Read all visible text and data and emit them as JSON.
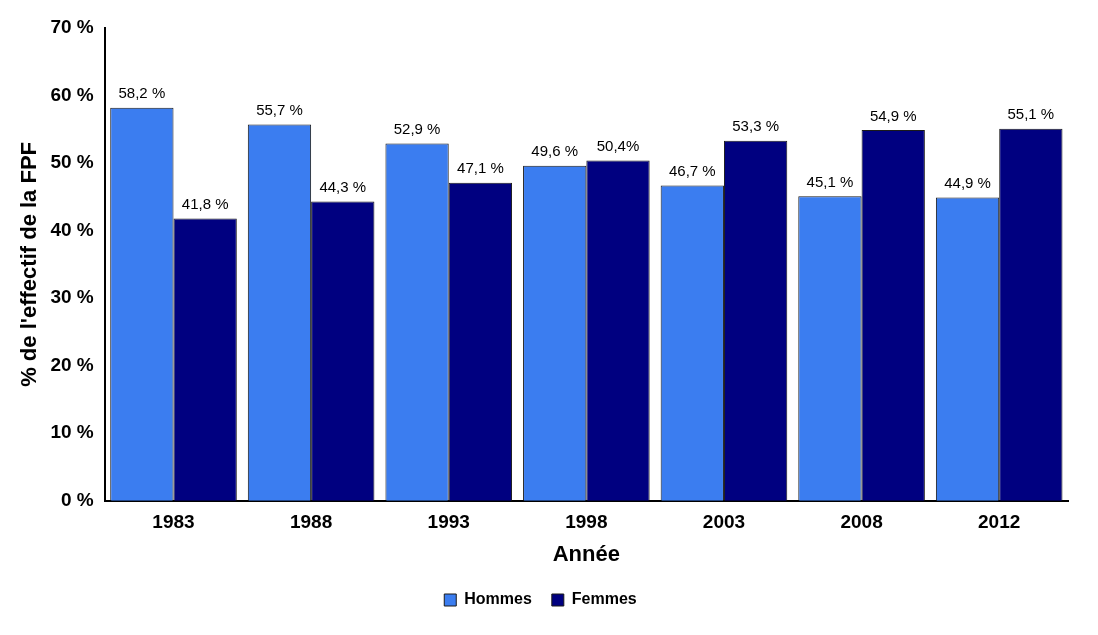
{
  "chart_data": {
    "type": "bar",
    "xlabel": "Année",
    "ylabel": "% de l'effectif de la FPF",
    "categories": [
      "1983",
      "1988",
      "1993",
      "1998",
      "2003",
      "2008",
      "2012"
    ],
    "series": [
      {
        "name": "Hommes",
        "color": "#3b7df0",
        "values": [
          58.2,
          55.7,
          52.9,
          49.6,
          46.7,
          45.1,
          44.9
        ],
        "value_labels": [
          "58,2 %",
          "55,7 %",
          "52,9 %",
          "49,6 %",
          "46,7 %",
          "45,1 %",
          "44,9 %"
        ]
      },
      {
        "name": "Femmes",
        "color": "#000080",
        "values": [
          41.8,
          44.3,
          47.1,
          50.4,
          53.3,
          54.9,
          55.1
        ],
        "value_labels": [
          "41,8 %",
          "44,3 %",
          "47,1 %",
          "50,4%",
          "53,3 %",
          "54,9 %",
          "55,1 %"
        ]
      }
    ],
    "ylim": [
      0,
      70
    ],
    "yticks": [
      {
        "value": 0,
        "label": "0 %"
      },
      {
        "value": 10,
        "label": "10 %"
      },
      {
        "value": 20,
        "label": "20 %"
      },
      {
        "value": 30,
        "label": "30 %"
      },
      {
        "value": 40,
        "label": "40 %"
      },
      {
        "value": 50,
        "label": "50 %"
      },
      {
        "value": 60,
        "label": "60 %"
      },
      {
        "value": 70,
        "label": "70 %"
      }
    ],
    "grid": false,
    "legend": "bottom"
  }
}
